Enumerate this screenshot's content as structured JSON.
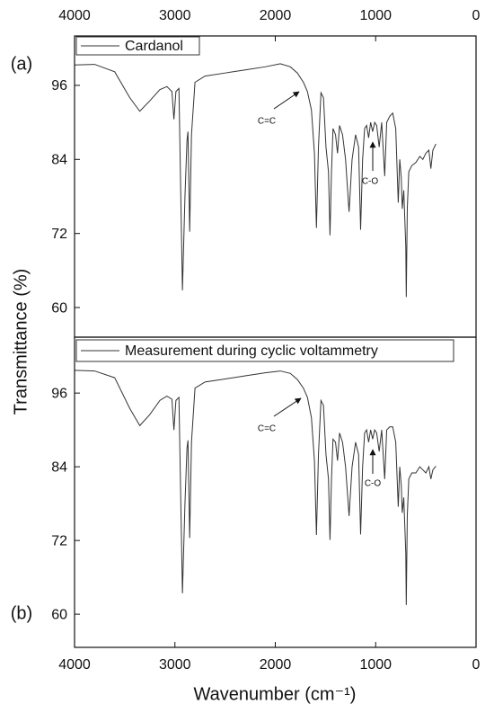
{
  "chart_data": [
    {
      "type": "line",
      "panel_label": "(a)",
      "ylabel": "Transmittance (%)",
      "x": [
        4000,
        3800,
        3600,
        3450,
        3350,
        3250,
        3150,
        3080,
        3030,
        3010,
        2990,
        2960,
        2925,
        2900,
        2880,
        2870,
        2853,
        2835,
        2800,
        2700,
        2500,
        2300,
        2100,
        1950,
        1850,
        1780,
        1720,
        1680,
        1640,
        1610,
        1590,
        1570,
        1545,
        1520,
        1495,
        1470,
        1455,
        1440,
        1425,
        1400,
        1380,
        1360,
        1330,
        1300,
        1265,
        1235,
        1200,
        1170,
        1150,
        1130,
        1110,
        1090,
        1070,
        1050,
        1030,
        1010,
        990,
        965,
        940,
        910,
        890,
        860,
        830,
        800,
        775,
        760,
        745,
        735,
        720,
        700,
        695,
        685,
        670,
        640,
        600,
        560,
        530,
        500,
        470,
        450,
        430,
        400
      ],
      "series": [
        {
          "name": "Cardanol",
          "color": "#333333",
          "values": [
            99.3,
            99.4,
            98.2,
            94,
            91.8,
            93.5,
            95.3,
            95.8,
            95,
            90.5,
            95,
            95.5,
            62.8,
            78,
            87,
            88.5,
            72.3,
            88,
            96.5,
            97.5,
            98,
            98.5,
            99,
            99.5,
            99,
            98,
            96.5,
            95,
            92,
            85,
            72.9,
            86,
            94.8,
            94,
            86,
            82,
            71.7,
            82,
            89,
            88,
            85,
            89.5,
            88,
            84,
            75.5,
            84,
            88,
            86,
            72.6,
            84,
            89,
            89.5,
            87.5,
            90,
            88.5,
            90,
            89.5,
            86,
            90,
            81.3,
            90,
            91,
            91.5,
            89,
            77,
            84,
            81,
            76,
            79,
            70,
            61.7,
            76,
            82,
            83,
            83.5,
            84.5,
            84,
            85,
            85.5,
            82.5,
            85.5,
            86.5
          ]
        }
      ],
      "xlim": [
        4000,
        0
      ],
      "xticks": [
        4000,
        3000,
        2000,
        1000,
        0
      ],
      "ylim": [
        55.2,
        104
      ],
      "yticks": [
        60,
        72,
        84,
        96
      ],
      "annotations": [
        "C=C",
        "C-O"
      ]
    },
    {
      "type": "line",
      "panel_label": "(b)",
      "xlabel": "Wavenumber (cm⁻¹)",
      "x": [
        4000,
        3800,
        3600,
        3450,
        3350,
        3250,
        3150,
        3080,
        3030,
        3010,
        2990,
        2960,
        2925,
        2900,
        2880,
        2870,
        2853,
        2835,
        2800,
        2700,
        2500,
        2300,
        2100,
        1950,
        1850,
        1780,
        1720,
        1680,
        1640,
        1610,
        1590,
        1570,
        1545,
        1520,
        1495,
        1470,
        1455,
        1440,
        1425,
        1400,
        1380,
        1360,
        1330,
        1300,
        1265,
        1235,
        1200,
        1170,
        1150,
        1130,
        1110,
        1090,
        1070,
        1050,
        1030,
        1010,
        990,
        965,
        940,
        910,
        890,
        860,
        830,
        800,
        775,
        760,
        745,
        735,
        720,
        700,
        695,
        685,
        670,
        640,
        600,
        560,
        530,
        500,
        470,
        450,
        430,
        400
      ],
      "series": [
        {
          "name": "Measurement during cyclic voltammetry",
          "color": "#333333",
          "values": [
            99.7,
            99.6,
            98.5,
            93.5,
            90.7,
            92.5,
            94.8,
            95.5,
            95,
            90,
            94.8,
            95.3,
            63.4,
            78,
            87,
            88.3,
            72.4,
            88,
            96.8,
            97.8,
            98.3,
            98.8,
            99.3,
            99.6,
            99.2,
            98.2,
            96.8,
            95.3,
            92,
            85,
            72.9,
            86,
            94.8,
            94,
            86,
            82,
            72.1,
            82,
            88.5,
            88,
            85,
            89.5,
            88,
            84,
            76,
            84,
            88,
            86,
            73,
            84,
            89.5,
            90,
            88,
            90,
            88.5,
            90,
            89.5,
            86.5,
            90,
            82,
            90,
            90.5,
            90.5,
            88,
            77.5,
            84,
            81,
            76.5,
            79,
            70,
            61.5,
            76,
            82,
            83,
            83,
            84,
            83.5,
            83,
            84,
            82,
            83.5,
            84.1
          ]
        }
      ],
      "xlim": [
        4000,
        0
      ],
      "xticks": [
        4000,
        3000,
        2000,
        1000,
        0
      ],
      "ylim": [
        54.6,
        105.1
      ],
      "yticks": [
        60,
        72,
        84,
        96
      ],
      "annotations": [
        "C=C",
        "C-O"
      ]
    }
  ]
}
